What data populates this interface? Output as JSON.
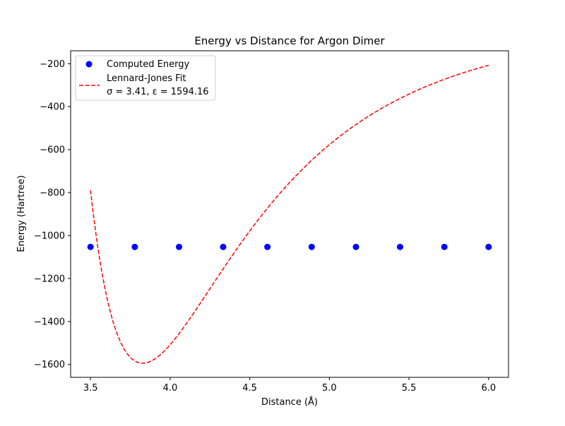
{
  "chart_data": {
    "type": "scatter",
    "title": "Energy vs Distance for Argon Dimer",
    "xlabel": "Distance (Å)",
    "ylabel": "Energy (Hartree)",
    "xlim": [
      3.375,
      6.125
    ],
    "ylim": [
      -1660,
      -140
    ],
    "xticks": [
      3.5,
      4.0,
      4.5,
      5.0,
      5.5,
      6.0
    ],
    "xtick_labels": [
      "3.5",
      "4.0",
      "4.5",
      "5.0",
      "5.5",
      "6.0"
    ],
    "yticks": [
      -1600,
      -1400,
      -1200,
      -1000,
      -800,
      -600,
      -400,
      -200
    ],
    "ytick_labels": [
      "−1600",
      "−1400",
      "−1200",
      "−1000",
      "−800",
      "−600",
      "−400",
      "−200"
    ],
    "grid": false,
    "legend_position": "top-left",
    "series": [
      {
        "name": "Computed Energy",
        "kind": "scatter",
        "color": "#0000ff",
        "x": [
          3.5,
          3.778,
          4.056,
          4.333,
          4.611,
          4.889,
          5.167,
          5.444,
          5.722,
          6.0
        ],
        "y": [
          -1053,
          -1053,
          -1053,
          -1053,
          -1053,
          -1053,
          -1053,
          -1053,
          -1053,
          -1053
        ]
      },
      {
        "name": "Lennard-Jones Fit",
        "label_line2": "σ = 3.41, ε = 1594.16",
        "kind": "line",
        "style": "dashed",
        "color": "#ff0000",
        "model": "lennard-jones",
        "sigma": 3.41,
        "epsilon": 1594.16,
        "x_range": [
          3.5,
          6.0
        ]
      }
    ]
  }
}
